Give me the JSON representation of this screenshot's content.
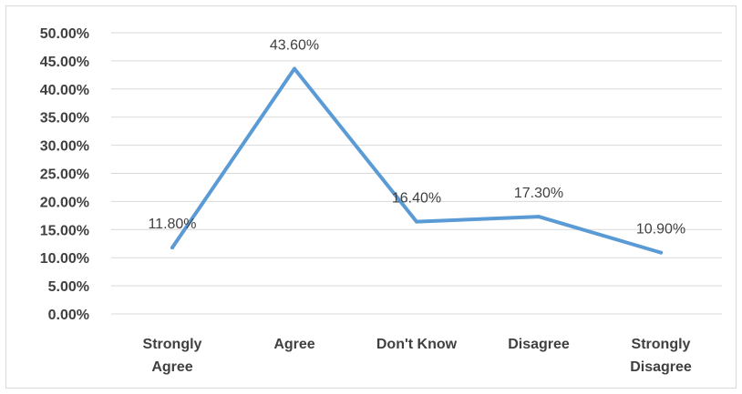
{
  "chart_data": {
    "type": "line",
    "categories": [
      [
        "Strongly",
        "Agree"
      ],
      [
        "Agree"
      ],
      [
        "Don't Know"
      ],
      [
        "Disagree"
      ],
      [
        "Strongly",
        "Disagree"
      ]
    ],
    "values": [
      11.8,
      43.6,
      16.4,
      17.3,
      10.9
    ],
    "data_labels": [
      "11.80%",
      "43.60%",
      "16.40%",
      "17.30%",
      "10.90%"
    ],
    "y_ticks": [
      "0.00%",
      "5.00%",
      "10.00%",
      "15.00%",
      "20.00%",
      "25.00%",
      "30.00%",
      "35.00%",
      "40.00%",
      "45.00%",
      "50.00%"
    ],
    "ylim": [
      0,
      50
    ],
    "grid": true,
    "legend": "none",
    "line_color": "#5b9bd5",
    "title": "",
    "xlabel": "",
    "ylabel": ""
  }
}
